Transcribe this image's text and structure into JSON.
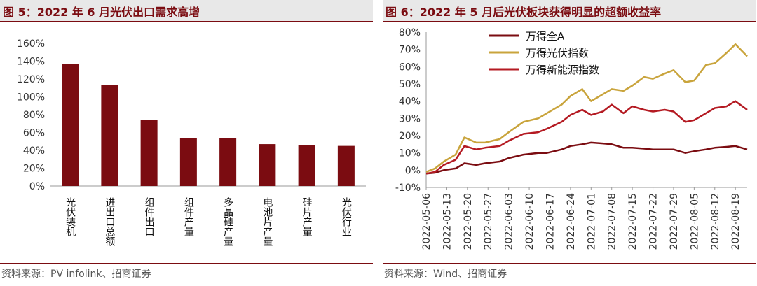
{
  "left": {
    "title": "图 5：2022 年 6 月光伏出口需求高增",
    "source": "资料来源：PV infolink、招商证券"
  },
  "right": {
    "title": "图 6：2022 年 5 月后光伏板块获得明显的超额收益率",
    "source": "资料来源：Wind、招商证券"
  },
  "colors": {
    "bar": "#7b0c11",
    "wind_a": "#7b0c11",
    "pv": "#c9a43c",
    "new_energy": "#b41a22",
    "title": "#7b0c11"
  },
  "chart_data": [
    {
      "type": "bar",
      "title": "",
      "categories": [
        "光伏装机",
        "进出口总额",
        "组件出口",
        "组件产量",
        "多晶硅产量",
        "电池片产量",
        "硅片产量",
        "光伏行业"
      ],
      "values": [
        137,
        113,
        74,
        54,
        54,
        47,
        46,
        45
      ],
      "unit": "%",
      "ylim": [
        0,
        160
      ],
      "yticks": [
        "0%",
        "20%",
        "40%",
        "60%",
        "80%",
        "100%",
        "120%",
        "140%",
        "160%"
      ],
      "grid": false,
      "legend": "none"
    },
    {
      "type": "line",
      "title": "",
      "ylim": [
        -10,
        80
      ],
      "yticks": [
        "-10%",
        "0%",
        "10%",
        "20%",
        "30%",
        "40%",
        "50%",
        "60%",
        "70%",
        "80%"
      ],
      "x_labels": [
        "2022-05-06",
        "2022-05-13",
        "2022-05-20",
        "2022-05-27",
        "2022-06-03",
        "2022-06-10",
        "2022-06-17",
        "2022-06-24",
        "2022-07-01",
        "2022-07-08",
        "2022-07-15",
        "2022-07-22",
        "2022-07-29",
        "2022-08-05",
        "2022-08-12",
        "2022-08-19"
      ],
      "x_start": "2022-05-06",
      "x_end": "2022-08-23",
      "legend": "top-left",
      "grid": false,
      "series": [
        {
          "name": "万得全A",
          "color": "#7b0c11",
          "x": [
            "2022-05-06",
            "2022-05-09",
            "2022-05-12",
            "2022-05-16",
            "2022-05-19",
            "2022-05-23",
            "2022-05-26",
            "2022-05-31",
            "2022-06-03",
            "2022-06-08",
            "2022-06-13",
            "2022-06-16",
            "2022-06-21",
            "2022-06-24",
            "2022-06-28",
            "2022-07-01",
            "2022-07-05",
            "2022-07-08",
            "2022-07-12",
            "2022-07-15",
            "2022-07-19",
            "2022-07-22",
            "2022-07-26",
            "2022-07-29",
            "2022-08-02",
            "2022-08-05",
            "2022-08-09",
            "2022-08-12",
            "2022-08-16",
            "2022-08-19",
            "2022-08-23"
          ],
          "values": [
            -2,
            -1.5,
            0,
            1,
            4,
            3,
            4,
            5,
            7,
            9,
            10,
            10,
            12,
            14,
            15,
            16,
            15.5,
            15,
            13,
            13,
            12.5,
            12,
            12,
            12,
            10,
            11,
            12,
            13,
            13.5,
            14,
            12
          ]
        },
        {
          "name": "万得光伏指数",
          "color": "#c9a43c",
          "x": [
            "2022-05-06",
            "2022-05-09",
            "2022-05-12",
            "2022-05-16",
            "2022-05-19",
            "2022-05-23",
            "2022-05-26",
            "2022-05-31",
            "2022-06-03",
            "2022-06-08",
            "2022-06-13",
            "2022-06-16",
            "2022-06-21",
            "2022-06-24",
            "2022-06-28",
            "2022-07-01",
            "2022-07-05",
            "2022-07-08",
            "2022-07-12",
            "2022-07-15",
            "2022-07-19",
            "2022-07-22",
            "2022-07-26",
            "2022-07-29",
            "2022-08-02",
            "2022-08-05",
            "2022-08-09",
            "2022-08-12",
            "2022-08-16",
            "2022-08-19",
            "2022-08-23"
          ],
          "values": [
            -1,
            1,
            5,
            9,
            19,
            16,
            16,
            18,
            22,
            28,
            30,
            33,
            38,
            43,
            47,
            40,
            44,
            47,
            46,
            49,
            54,
            53,
            56,
            58,
            51,
            52,
            61,
            62,
            68,
            73,
            66
          ]
        },
        {
          "name": "万得新能源指数",
          "color": "#b41a22",
          "x": [
            "2022-05-06",
            "2022-05-09",
            "2022-05-12",
            "2022-05-16",
            "2022-05-19",
            "2022-05-23",
            "2022-05-26",
            "2022-05-31",
            "2022-06-03",
            "2022-06-08",
            "2022-06-13",
            "2022-06-16",
            "2022-06-21",
            "2022-06-24",
            "2022-06-28",
            "2022-07-01",
            "2022-07-05",
            "2022-07-08",
            "2022-07-12",
            "2022-07-15",
            "2022-07-19",
            "2022-07-22",
            "2022-07-26",
            "2022-07-29",
            "2022-08-02",
            "2022-08-05",
            "2022-08-09",
            "2022-08-12",
            "2022-08-16",
            "2022-08-19",
            "2022-08-23"
          ],
          "values": [
            -2,
            -1,
            3,
            6,
            14,
            12,
            13,
            14,
            17,
            21,
            22,
            24,
            28,
            32,
            35,
            32,
            34,
            38,
            33,
            37,
            35,
            34,
            35,
            34,
            28,
            29,
            33,
            36,
            37,
            40,
            35
          ]
        }
      ]
    }
  ]
}
